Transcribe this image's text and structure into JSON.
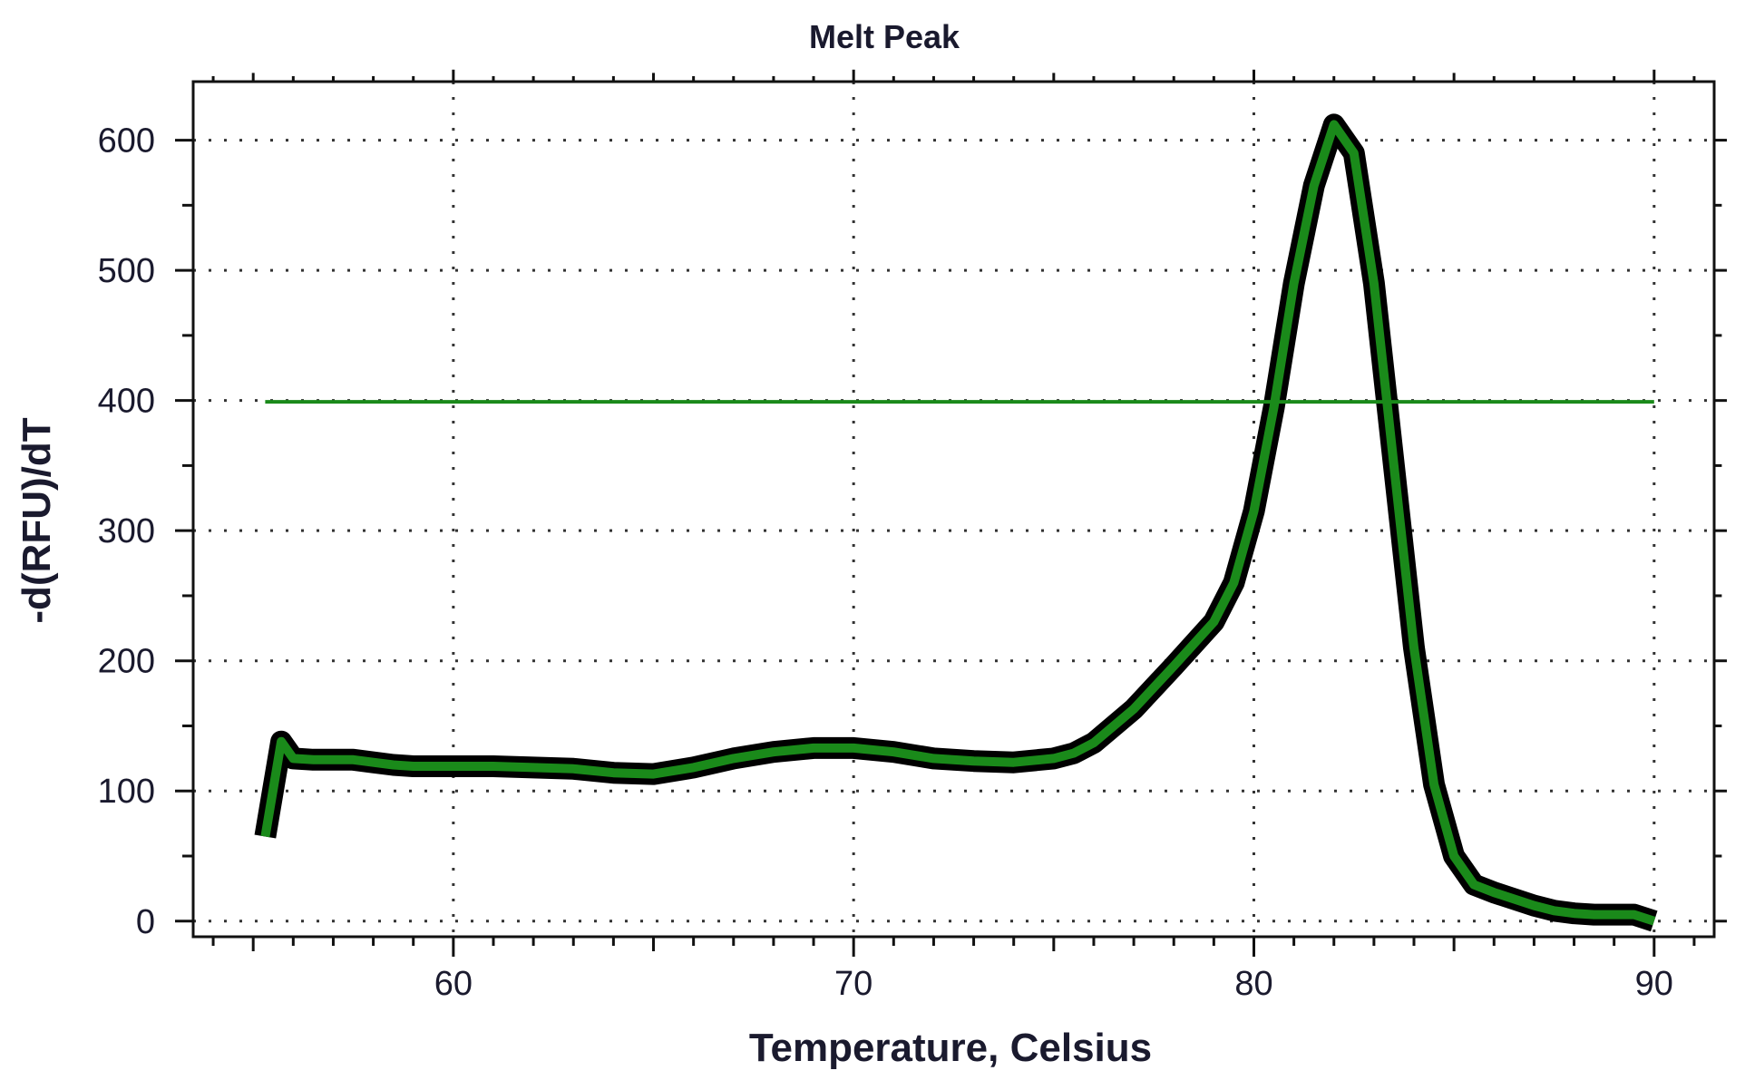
{
  "chart_data": {
    "type": "line",
    "title": "Melt Peak",
    "xlabel": "Temperature, Celsius",
    "ylabel": "-d(RFU)/dT",
    "xlim": [
      53.5,
      91.5
    ],
    "ylim": [
      -12,
      645
    ],
    "xticks": [
      60,
      70,
      80,
      90
    ],
    "yticks": [
      0,
      100,
      200,
      300,
      400,
      500,
      600
    ],
    "grid": true,
    "series": [
      {
        "color": "#1a8a1a",
        "outline_color": "#000000",
        "x": [
          55.3,
          55.7,
          56.0,
          56.5,
          57.0,
          57.5,
          58.0,
          58.5,
          59.0,
          59.5,
          60.0,
          61.0,
          62.0,
          63.0,
          64.0,
          65.0,
          66.0,
          67.0,
          68.0,
          69.0,
          70.0,
          71.0,
          72.0,
          73.0,
          74.0,
          75.0,
          75.5,
          76.0,
          77.0,
          78.0,
          79.0,
          79.5,
          80.0,
          80.5,
          81.0,
          81.5,
          82.0,
          82.5,
          83.0,
          83.5,
          84.0,
          84.5,
          85.0,
          85.5,
          86.0,
          86.5,
          87.0,
          87.5,
          88.0,
          88.5,
          89.0,
          89.5,
          90.0
        ],
        "y": [
          65,
          138,
          125,
          124,
          124,
          124,
          122,
          120,
          119,
          119,
          119,
          119,
          118,
          117,
          114,
          113,
          118,
          125,
          130,
          133,
          133,
          130,
          125,
          123,
          122,
          125,
          129,
          137,
          163,
          196,
          230,
          260,
          315,
          395,
          490,
          565,
          612,
          590,
          490,
          350,
          210,
          105,
          50,
          28,
          22,
          17,
          12,
          8,
          6,
          5,
          5,
          5,
          0
        ]
      },
      {
        "color": "#1a8a1a",
        "x": [
          55.3,
          90.0
        ],
        "y": [
          399,
          399
        ]
      }
    ]
  }
}
